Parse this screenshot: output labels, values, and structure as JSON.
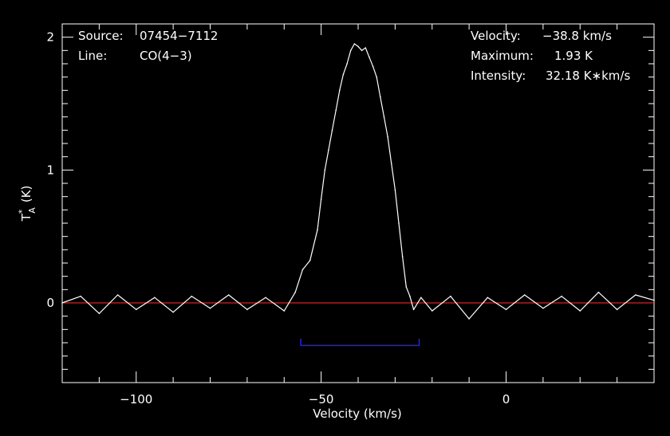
{
  "chart_data": {
    "type": "line",
    "xlabel": "Velocity (km/s)",
    "ylabel_main": "T",
    "ylabel_sup": "*",
    "ylabel_sub": "A",
    "ylabel_unit": "(K)",
    "xlim": [
      -120,
      40
    ],
    "ylim": [
      -0.6,
      2.1
    ],
    "x_ticks": [
      -100,
      -50,
      0
    ],
    "x_tick_labels": [
      "−100",
      "−50",
      "0"
    ],
    "y_ticks": [
      0,
      1,
      2
    ],
    "y_tick_labels": [
      "0",
      "1",
      "2"
    ],
    "baseline": 0,
    "integration_window": {
      "x_start": -55.5,
      "x_end": -23.5,
      "y": -0.32
    },
    "series": [
      {
        "x": [
          -120,
          -115,
          -110,
          -105,
          -100,
          -95,
          -90,
          -85,
          -80,
          -75,
          -70,
          -65,
          -60,
          -57,
          -55,
          -53,
          -51,
          -50,
          -49,
          -48,
          -47,
          -46,
          -45,
          -44,
          -43,
          -42,
          -41,
          -40,
          -39,
          -38,
          -37,
          -36,
          -35,
          -34,
          -33,
          -32,
          -31,
          -30,
          -29,
          -28,
          -27,
          -26,
          -25,
          -23,
          -20,
          -15,
          -10,
          -5,
          0,
          5,
          10,
          15,
          20,
          25,
          30,
          35,
          40
        ],
        "values": [
          0.0,
          0.05,
          -0.08,
          0.06,
          -0.05,
          0.04,
          -0.07,
          0.05,
          -0.04,
          0.06,
          -0.05,
          0.04,
          -0.06,
          0.08,
          0.25,
          0.32,
          0.55,
          0.78,
          1.0,
          1.15,
          1.3,
          1.45,
          1.6,
          1.72,
          1.8,
          1.9,
          1.95,
          1.93,
          1.9,
          1.92,
          1.85,
          1.78,
          1.7,
          1.55,
          1.4,
          1.25,
          1.05,
          0.85,
          0.6,
          0.35,
          0.12,
          0.05,
          -0.05,
          0.04,
          -0.06,
          0.05,
          -0.12,
          0.04,
          -0.05,
          0.06,
          -0.04,
          0.05,
          -0.06,
          0.08,
          -0.05,
          0.06,
          0.02
        ]
      }
    ],
    "annotations_left": [
      {
        "key": "Source:",
        "value": "07454−7112"
      },
      {
        "key": "Line:",
        "value": "CO(4−3)"
      }
    ],
    "annotations_right": [
      {
        "key": "Velocity:",
        "value": "−38.8 km/s"
      },
      {
        "key": "Maximum:",
        "value": "1.93 K"
      },
      {
        "key": "Intensity:",
        "value": "32.18 K∗km/s"
      }
    ],
    "colors": {
      "background": "#000000",
      "spectrum": "#ffffff",
      "axes": "#ffffff",
      "baseline": "#ff3030",
      "window": "#2020ff"
    }
  }
}
